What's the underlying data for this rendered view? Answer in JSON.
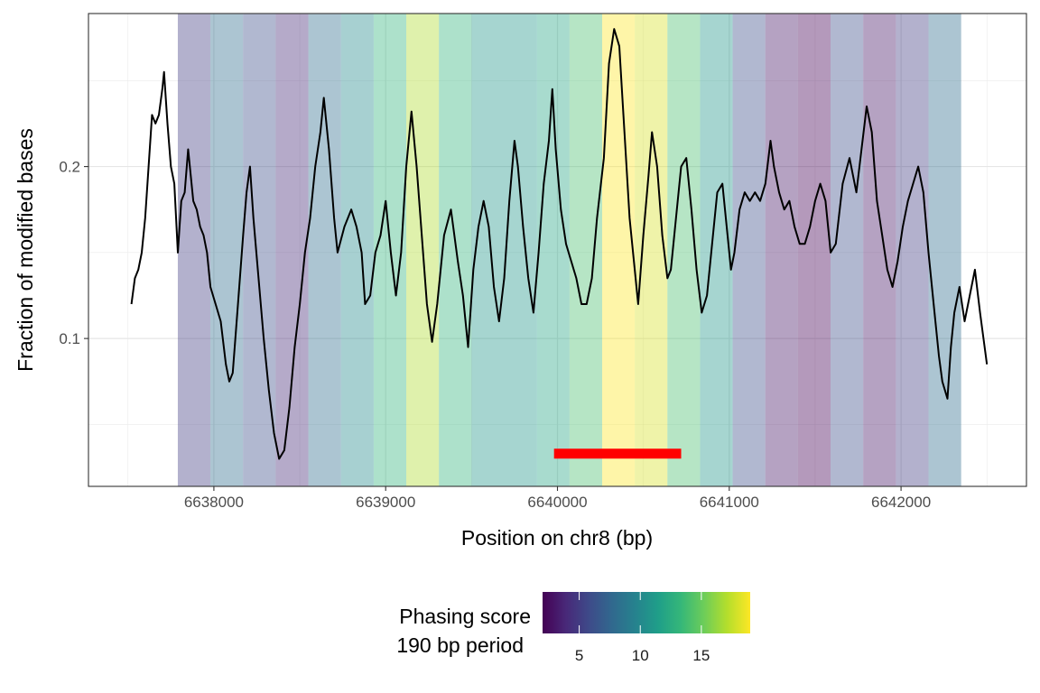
{
  "chart_data": {
    "type": "line",
    "xlabel": "Position on chr8 (bp)",
    "ylabel": "Fraction of modified bases",
    "x_ticks": [
      6638000,
      6639000,
      6640000,
      6641000,
      6642000
    ],
    "y_ticks": [
      0.1,
      0.2
    ],
    "xlim": [
      6637270,
      6642730
    ],
    "ylim": [
      0.014,
      0.289
    ],
    "grid": true,
    "legend": {
      "title_line1": "Phasing score",
      "title_line2": "190 bp period",
      "placement": "bottom",
      "ticks": [
        5,
        10,
        15
      ],
      "range": [
        2,
        19
      ],
      "colors": [
        "#440154",
        "#482878",
        "#3E4A89",
        "#31688E",
        "#26828E",
        "#1F9E89",
        "#35B779",
        "#6DCD59",
        "#B4DE2C",
        "#FDE725"
      ]
    },
    "band_opacity": 0.4,
    "bands": [
      {
        "start": 6637790,
        "end": 6637980,
        "score": 5
      },
      {
        "start": 6637980,
        "end": 6638170,
        "score": 8
      },
      {
        "start": 6638170,
        "end": 6638360,
        "score": 6
      },
      {
        "start": 6638360,
        "end": 6638550,
        "score": 4
      },
      {
        "start": 6638550,
        "end": 6638740,
        "score": 8
      },
      {
        "start": 6638740,
        "end": 6638930,
        "score": 10
      },
      {
        "start": 6638930,
        "end": 6639120,
        "score": 13
      },
      {
        "start": 6639120,
        "end": 6639310,
        "score": 17
      },
      {
        "start": 6639310,
        "end": 6639500,
        "score": 13
      },
      {
        "start": 6639500,
        "end": 6639690,
        "score": 11
      },
      {
        "start": 6639690,
        "end": 6639880,
        "score": 11
      },
      {
        "start": 6639880,
        "end": 6640070,
        "score": 12
      },
      {
        "start": 6640070,
        "end": 6640260,
        "score": 14
      },
      {
        "start": 6640260,
        "end": 6640450,
        "score": 19
      },
      {
        "start": 6640450,
        "end": 6640640,
        "score": 18
      },
      {
        "start": 6640640,
        "end": 6640830,
        "score": 14
      },
      {
        "start": 6640830,
        "end": 6641020,
        "score": 11
      },
      {
        "start": 6641020,
        "end": 6641210,
        "score": 6
      },
      {
        "start": 6641210,
        "end": 6641400,
        "score": 3
      },
      {
        "start": 6641400,
        "end": 6641590,
        "score": 2
      },
      {
        "start": 6641590,
        "end": 6641780,
        "score": 6
      },
      {
        "start": 6641780,
        "end": 6641970,
        "score": 3
      },
      {
        "start": 6641970,
        "end": 6642160,
        "score": 5
      },
      {
        "start": 6642160,
        "end": 6642350,
        "score": 8
      }
    ],
    "highlight_segment": {
      "start": 6639980,
      "end": 6640720,
      "y": 0.033,
      "color": "#ff0000"
    },
    "series": [
      {
        "color": "#000000",
        "points": [
          [
            6637520,
            0.12
          ],
          [
            6637540,
            0.135
          ],
          [
            6637560,
            0.14
          ],
          [
            6637580,
            0.15
          ],
          [
            6637600,
            0.17
          ],
          [
            6637620,
            0.2
          ],
          [
            6637640,
            0.23
          ],
          [
            6637660,
            0.225
          ],
          [
            6637680,
            0.23
          ],
          [
            6637700,
            0.245
          ],
          [
            6637710,
            0.255
          ],
          [
            6637730,
            0.225
          ],
          [
            6637750,
            0.2
          ],
          [
            6637770,
            0.19
          ],
          [
            6637790,
            0.15
          ],
          [
            6637810,
            0.18
          ],
          [
            6637830,
            0.185
          ],
          [
            6637850,
            0.21
          ],
          [
            6637860,
            0.2
          ],
          [
            6637880,
            0.18
          ],
          [
            6637900,
            0.175
          ],
          [
            6637920,
            0.165
          ],
          [
            6637940,
            0.16
          ],
          [
            6637960,
            0.15
          ],
          [
            6637980,
            0.13
          ],
          [
            6638010,
            0.12
          ],
          [
            6638040,
            0.11
          ],
          [
            6638070,
            0.085
          ],
          [
            6638090,
            0.075
          ],
          [
            6638110,
            0.08
          ],
          [
            6638140,
            0.12
          ],
          [
            6638170,
            0.16
          ],
          [
            6638190,
            0.185
          ],
          [
            6638210,
            0.2
          ],
          [
            6638230,
            0.17
          ],
          [
            6638260,
            0.135
          ],
          [
            6638290,
            0.1
          ],
          [
            6638320,
            0.07
          ],
          [
            6638350,
            0.045
          ],
          [
            6638380,
            0.03
          ],
          [
            6638410,
            0.035
          ],
          [
            6638440,
            0.06
          ],
          [
            6638470,
            0.095
          ],
          [
            6638500,
            0.12
          ],
          [
            6638530,
            0.15
          ],
          [
            6638560,
            0.17
          ],
          [
            6638590,
            0.2
          ],
          [
            6638620,
            0.22
          ],
          [
            6638640,
            0.24
          ],
          [
            6638670,
            0.21
          ],
          [
            6638700,
            0.17
          ],
          [
            6638720,
            0.15
          ],
          [
            6638760,
            0.165
          ],
          [
            6638800,
            0.175
          ],
          [
            6638830,
            0.165
          ],
          [
            6638860,
            0.15
          ],
          [
            6638880,
            0.12
          ],
          [
            6638910,
            0.125
          ],
          [
            6638940,
            0.15
          ],
          [
            6638970,
            0.16
          ],
          [
            6639000,
            0.18
          ],
          [
            6639030,
            0.15
          ],
          [
            6639060,
            0.125
          ],
          [
            6639090,
            0.15
          ],
          [
            6639120,
            0.2
          ],
          [
            6639150,
            0.232
          ],
          [
            6639180,
            0.2
          ],
          [
            6639210,
            0.16
          ],
          [
            6639240,
            0.12
          ],
          [
            6639270,
            0.098
          ],
          [
            6639300,
            0.12
          ],
          [
            6639340,
            0.16
          ],
          [
            6639380,
            0.175
          ],
          [
            6639420,
            0.145
          ],
          [
            6639450,
            0.125
          ],
          [
            6639480,
            0.095
          ],
          [
            6639510,
            0.14
          ],
          [
            6639540,
            0.165
          ],
          [
            6639570,
            0.18
          ],
          [
            6639600,
            0.165
          ],
          [
            6639630,
            0.13
          ],
          [
            6639660,
            0.11
          ],
          [
            6639690,
            0.135
          ],
          [
            6639720,
            0.18
          ],
          [
            6639750,
            0.215
          ],
          [
            6639770,
            0.2
          ],
          [
            6639800,
            0.165
          ],
          [
            6639830,
            0.135
          ],
          [
            6639860,
            0.115
          ],
          [
            6639890,
            0.15
          ],
          [
            6639920,
            0.19
          ],
          [
            6639950,
            0.215
          ],
          [
            6639970,
            0.245
          ],
          [
            6639990,
            0.21
          ],
          [
            6640020,
            0.175
          ],
          [
            6640050,
            0.155
          ],
          [
            6640080,
            0.145
          ],
          [
            6640110,
            0.135
          ],
          [
            6640140,
            0.12
          ],
          [
            6640170,
            0.12
          ],
          [
            6640200,
            0.135
          ],
          [
            6640230,
            0.17
          ],
          [
            6640270,
            0.205
          ],
          [
            6640300,
            0.26
          ],
          [
            6640330,
            0.28
          ],
          [
            6640360,
            0.27
          ],
          [
            6640390,
            0.22
          ],
          [
            6640420,
            0.17
          ],
          [
            6640450,
            0.14
          ],
          [
            6640470,
            0.12
          ],
          [
            6640500,
            0.16
          ],
          [
            6640530,
            0.195
          ],
          [
            6640550,
            0.22
          ],
          [
            6640580,
            0.2
          ],
          [
            6640610,
            0.16
          ],
          [
            6640640,
            0.135
          ],
          [
            6640660,
            0.14
          ],
          [
            6640690,
            0.17
          ],
          [
            6640720,
            0.2
          ],
          [
            6640750,
            0.205
          ],
          [
            6640780,
            0.175
          ],
          [
            6640810,
            0.14
          ],
          [
            6640840,
            0.115
          ],
          [
            6640870,
            0.125
          ],
          [
            6640900,
            0.155
          ],
          [
            6640930,
            0.185
          ],
          [
            6640960,
            0.19
          ],
          [
            6640990,
            0.16
          ],
          [
            6641010,
            0.14
          ],
          [
            6641030,
            0.15
          ],
          [
            6641060,
            0.175
          ],
          [
            6641090,
            0.185
          ],
          [
            6641120,
            0.18
          ],
          [
            6641150,
            0.185
          ],
          [
            6641180,
            0.18
          ],
          [
            6641210,
            0.19
          ],
          [
            6641240,
            0.215
          ],
          [
            6641260,
            0.2
          ],
          [
            6641290,
            0.185
          ],
          [
            6641320,
            0.175
          ],
          [
            6641350,
            0.18
          ],
          [
            6641380,
            0.165
          ],
          [
            6641410,
            0.155
          ],
          [
            6641440,
            0.155
          ],
          [
            6641470,
            0.165
          ],
          [
            6641500,
            0.18
          ],
          [
            6641530,
            0.19
          ],
          [
            6641560,
            0.18
          ],
          [
            6641590,
            0.15
          ],
          [
            6641620,
            0.155
          ],
          [
            6641660,
            0.19
          ],
          [
            6641700,
            0.205
          ],
          [
            6641740,
            0.185
          ],
          [
            6641770,
            0.21
          ],
          [
            6641800,
            0.235
          ],
          [
            6641830,
            0.22
          ],
          [
            6641860,
            0.18
          ],
          [
            6641890,
            0.16
          ],
          [
            6641920,
            0.14
          ],
          [
            6641950,
            0.13
          ],
          [
            6641980,
            0.145
          ],
          [
            6642010,
            0.165
          ],
          [
            6642040,
            0.18
          ],
          [
            6642070,
            0.19
          ],
          [
            6642100,
            0.2
          ],
          [
            6642130,
            0.185
          ],
          [
            6642160,
            0.15
          ],
          [
            6642190,
            0.12
          ],
          [
            6642220,
            0.09
          ],
          [
            6642240,
            0.075
          ],
          [
            6642270,
            0.065
          ],
          [
            6642290,
            0.095
          ],
          [
            6642310,
            0.115
          ],
          [
            6642340,
            0.13
          ],
          [
            6642370,
            0.11
          ],
          [
            6642400,
            0.125
          ],
          [
            6642430,
            0.14
          ],
          [
            6642460,
            0.115
          ],
          [
            6642480,
            0.1
          ],
          [
            6642500,
            0.085
          ]
        ]
      }
    ]
  }
}
